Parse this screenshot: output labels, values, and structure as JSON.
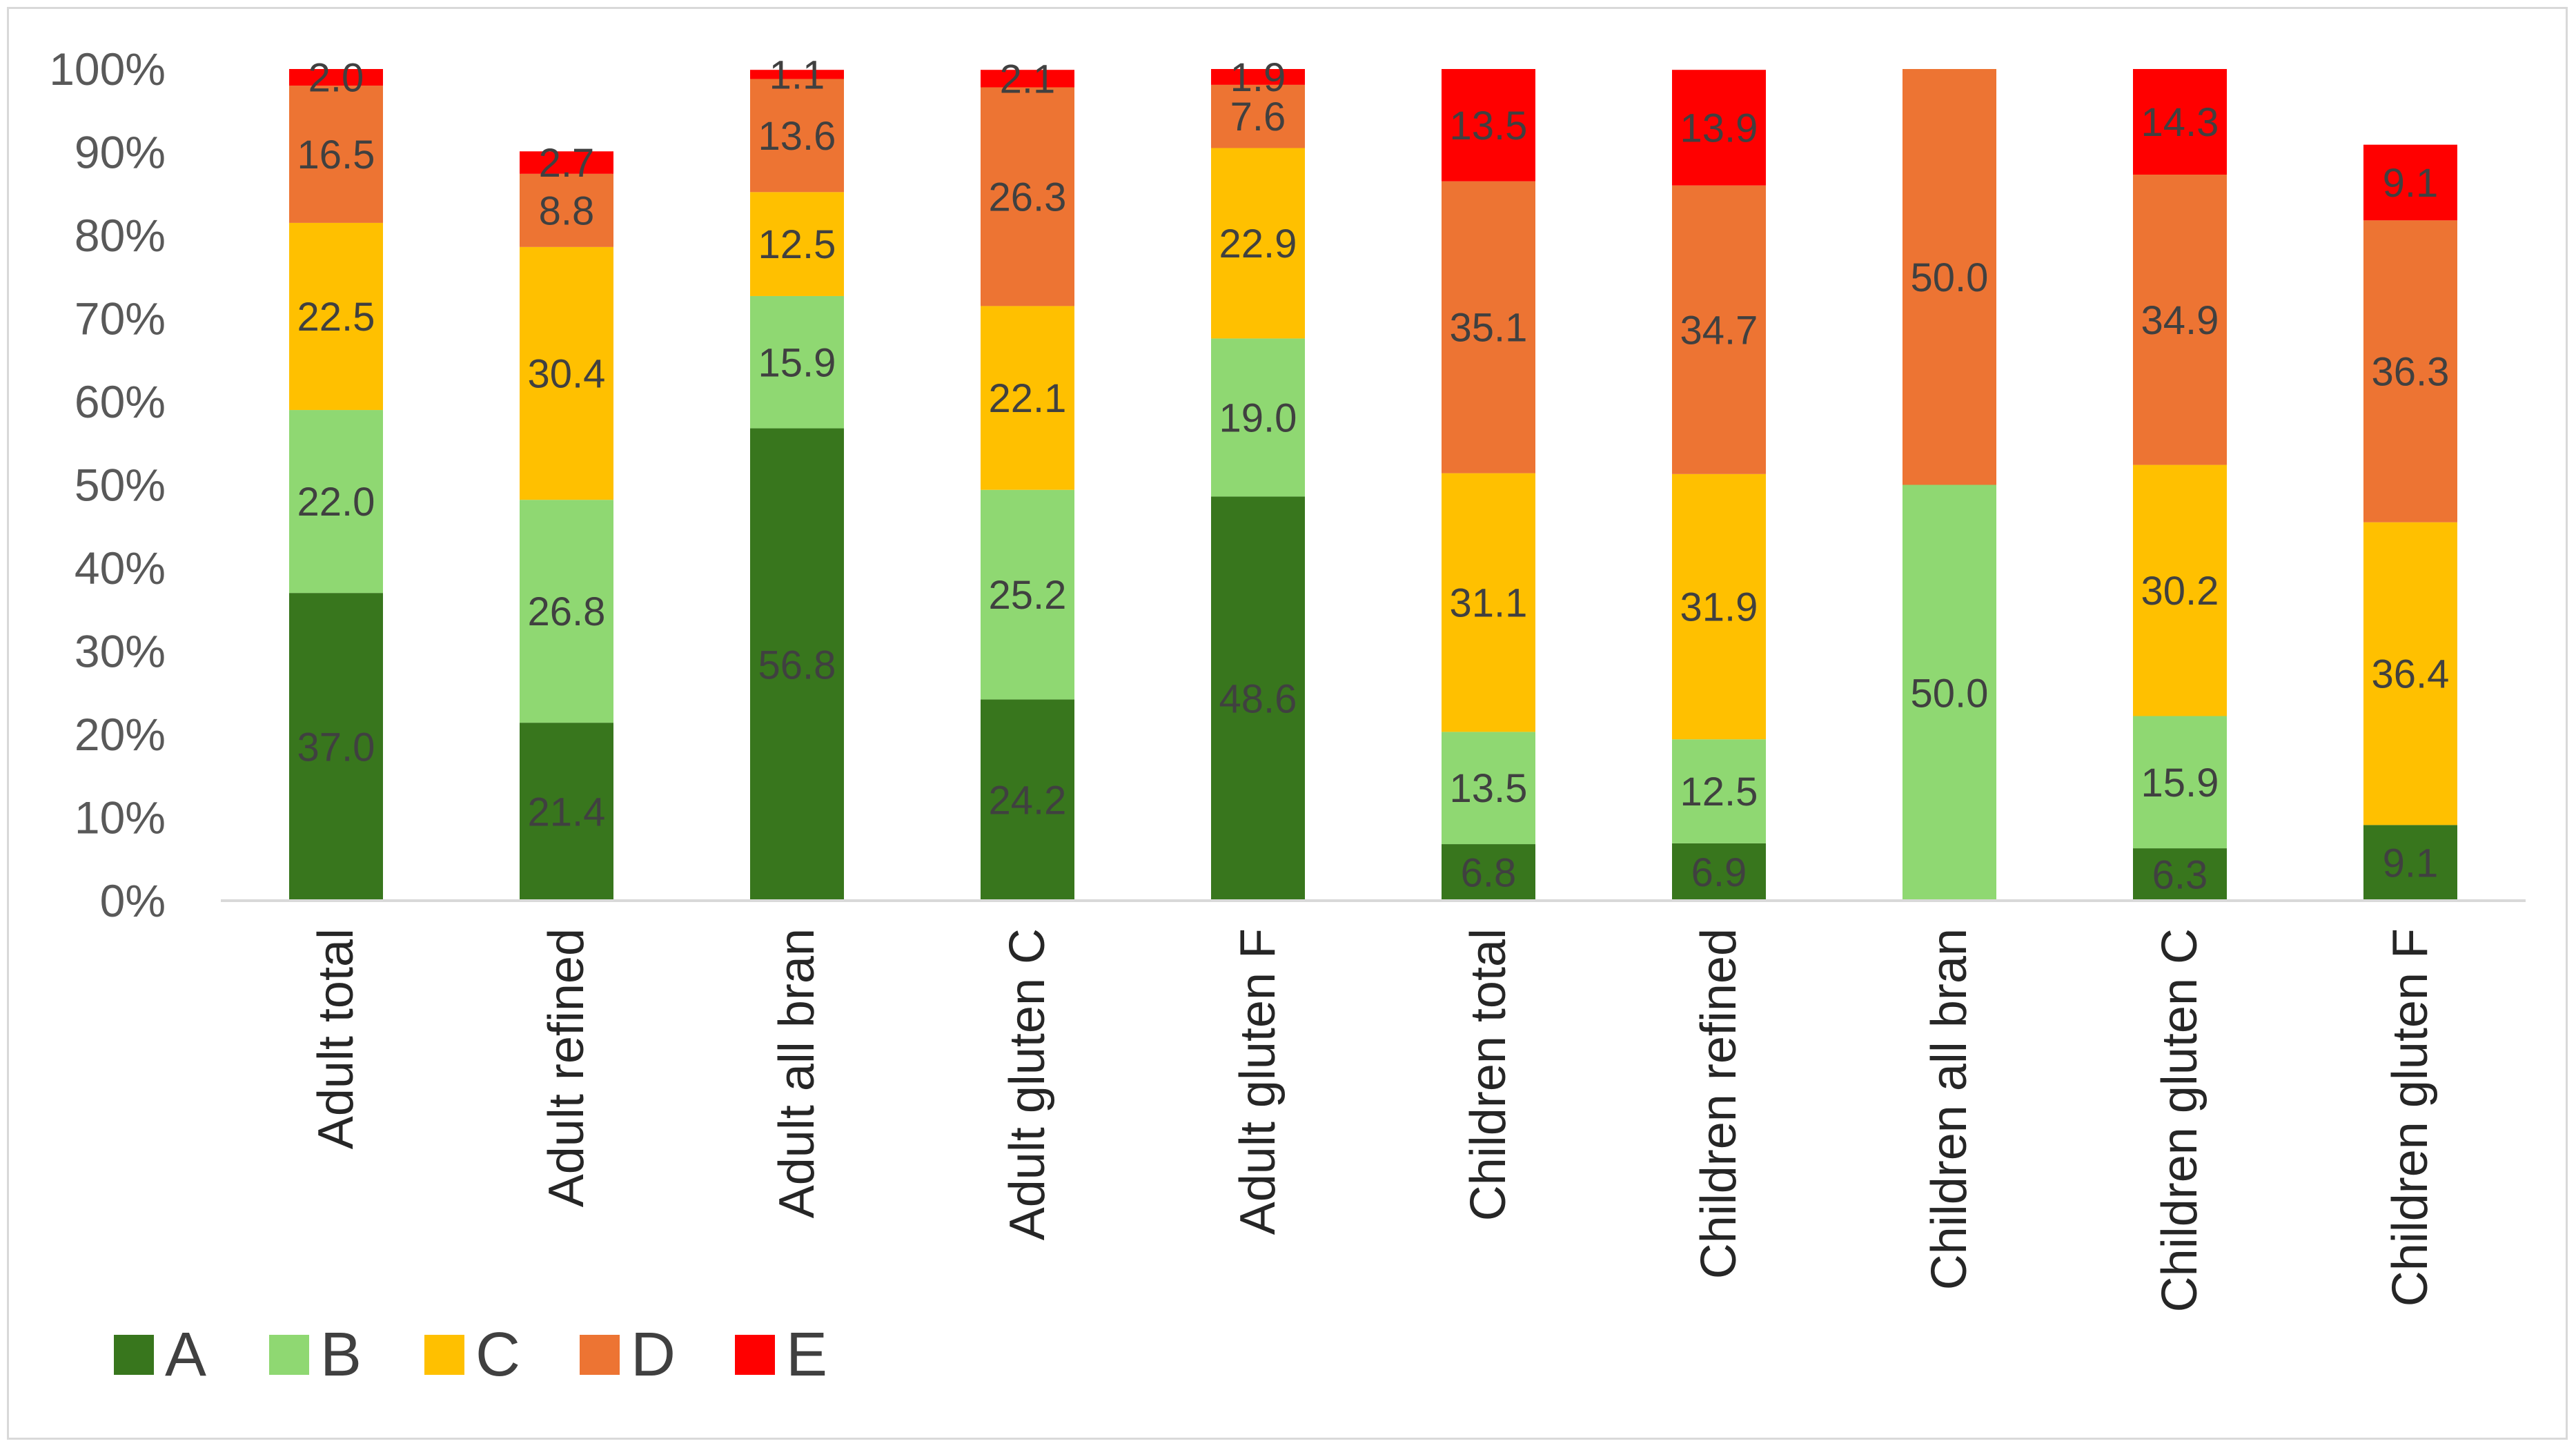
{
  "chart_data": {
    "type": "bar",
    "stacked": true,
    "percent": true,
    "title": "",
    "xlabel": "",
    "ylabel": "",
    "ylim": [
      0,
      100
    ],
    "y_ticks": [
      "0%",
      "10%",
      "20%",
      "30%",
      "40%",
      "50%",
      "60%",
      "70%",
      "80%",
      "90%",
      "100%"
    ],
    "grid": false,
    "legend_position": "bottom-left",
    "categories": [
      "Adult total",
      "Adult refined",
      "Adult all bran",
      "Adult gluten C",
      "Adult gluten F",
      "Children total",
      "Children refined",
      "Children all bran",
      "Children gluten C",
      "Children gluten F"
    ],
    "series": [
      {
        "name": "A",
        "color": "#38761d",
        "values": [
          37.0,
          21.4,
          56.8,
          24.2,
          48.6,
          6.8,
          6.9,
          0,
          6.3,
          9.1
        ],
        "labels": [
          "37.0",
          "21.4",
          "56.8",
          "24.2",
          "48.6",
          "6.8",
          "6.9",
          "",
          "6.3",
          "9.1"
        ]
      },
      {
        "name": "B",
        "color": "#8fd872",
        "values": [
          22.0,
          26.8,
          15.9,
          25.2,
          19.0,
          13.5,
          12.5,
          50.0,
          15.9,
          0
        ],
        "labels": [
          "22.0",
          "26.8",
          "15.9",
          "25.2",
          "19.0",
          "13.5",
          "12.5",
          "50.0",
          "15.9",
          ""
        ]
      },
      {
        "name": "C",
        "color": "#ffc000",
        "values": [
          22.5,
          30.4,
          12.5,
          22.1,
          22.9,
          31.1,
          31.9,
          0,
          30.2,
          36.4
        ],
        "labels": [
          "22.5",
          "30.4",
          "12.5",
          "22.1",
          "22.9",
          "31.1",
          "31.9",
          "",
          "30.2",
          "36.4"
        ]
      },
      {
        "name": "D",
        "color": "#ed7433",
        "values": [
          16.5,
          8.8,
          13.6,
          26.3,
          7.6,
          35.1,
          34.7,
          50.0,
          34.9,
          36.3
        ],
        "labels": [
          "16.5",
          "8.8",
          "13.6",
          "26.3",
          "7.6",
          "35.1",
          "34.7",
          "50.0",
          "34.9",
          "36.3"
        ]
      },
      {
        "name": "E",
        "color": "#ff0000",
        "values": [
          2.0,
          2.7,
          1.1,
          2.1,
          1.9,
          13.5,
          13.9,
          0,
          14.3,
          9.1
        ],
        "labels": [
          "2.0",
          "2.7",
          "1.1",
          "2.1",
          "1.9",
          "13.5",
          "13.9",
          "",
          "14.3",
          "9.1"
        ]
      }
    ]
  }
}
